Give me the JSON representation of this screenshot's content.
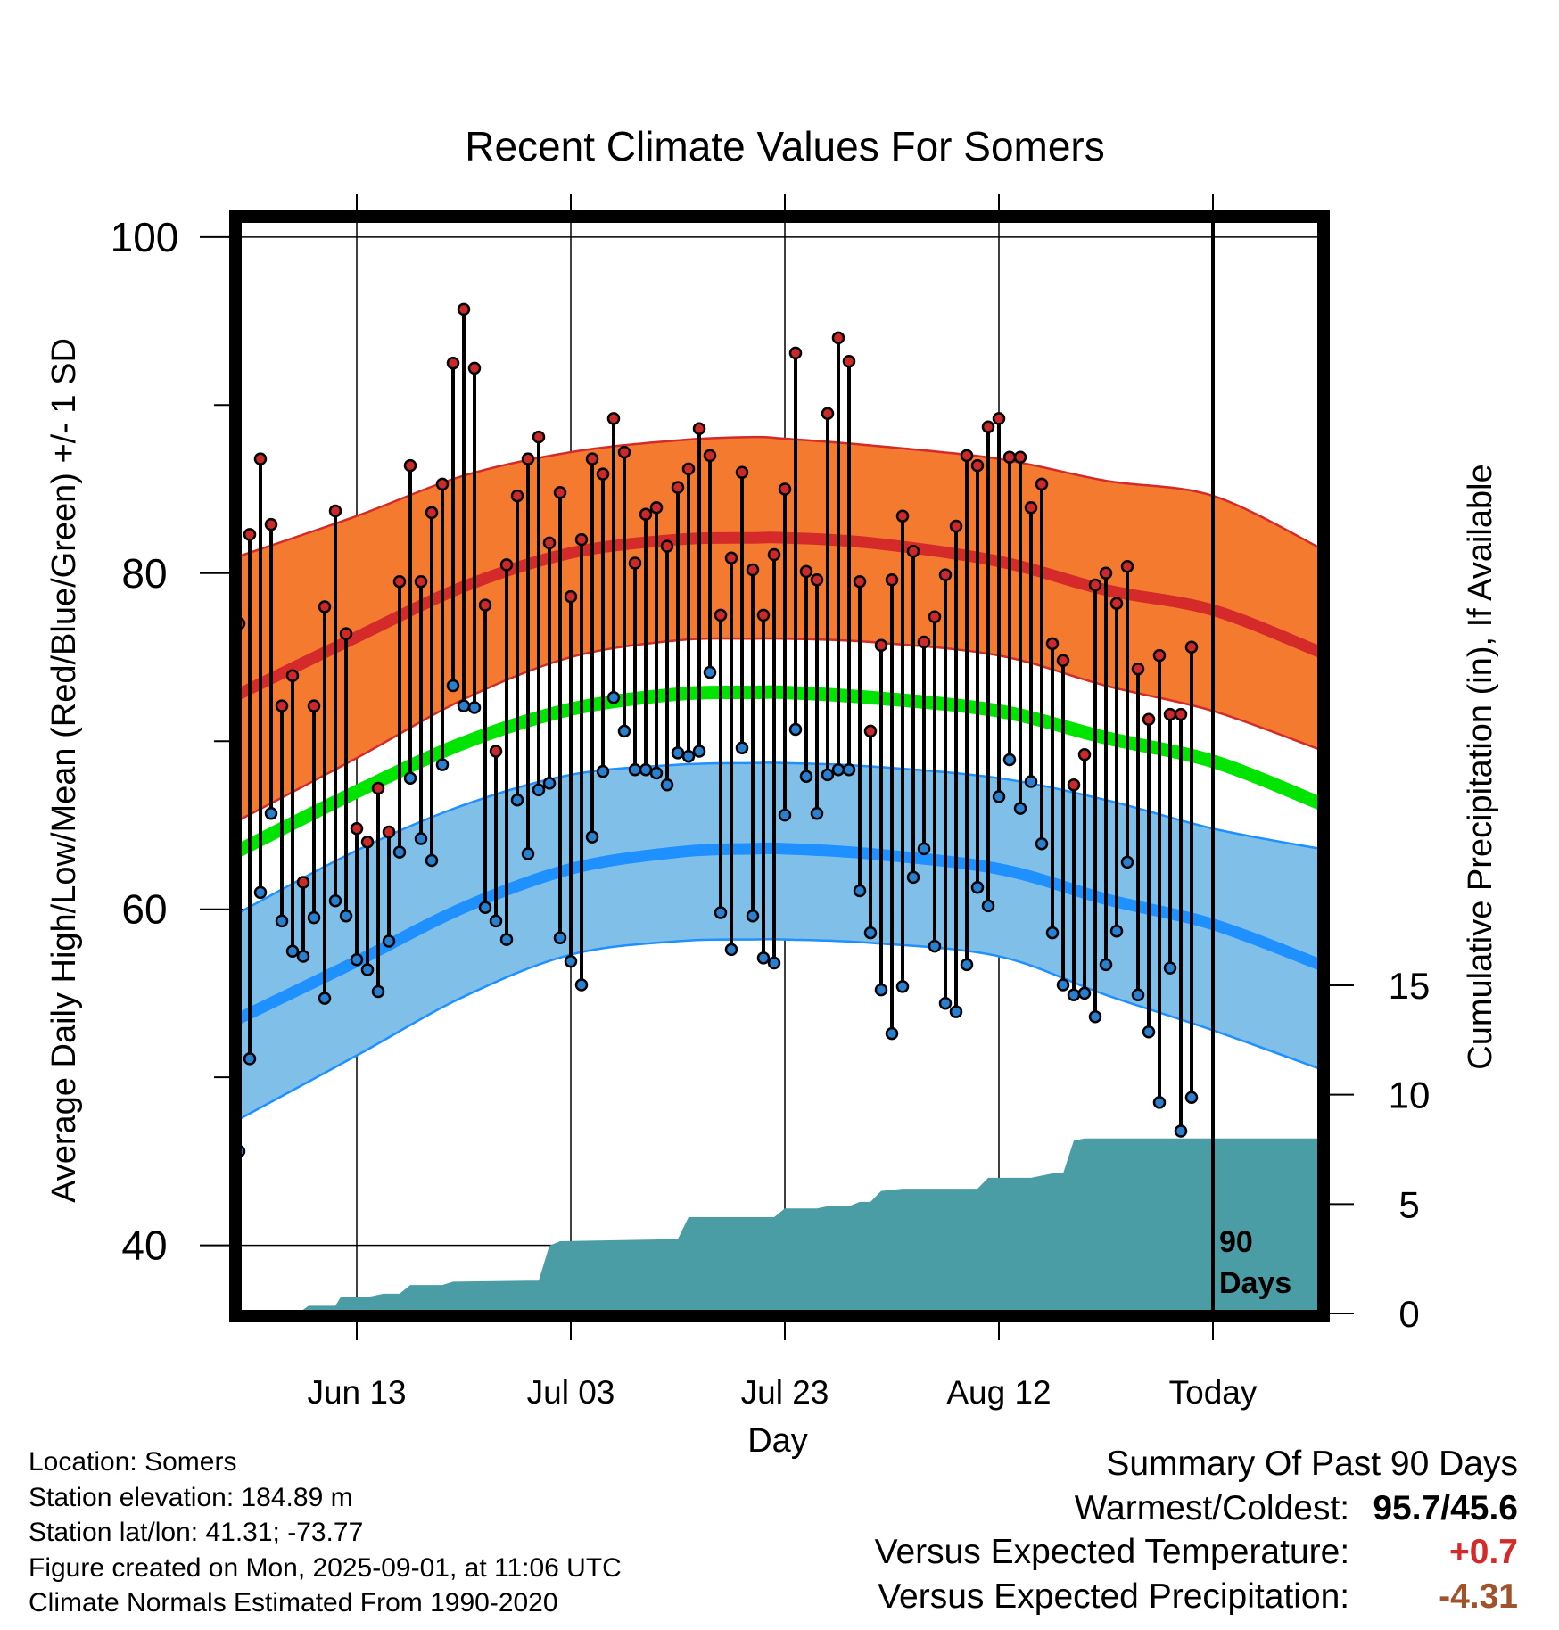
{
  "chart_data": {
    "type": "line",
    "title": "Recent Climate Values For Somers",
    "xlabel": "Day",
    "ylabel": "Average Daily High/Low/Mean (Red/Blue/Green) +/- 1 SD",
    "y2label": "Cumulative Precipitation (in), If Available",
    "ylim": [
      36,
      101
    ],
    "y2lim": [
      0,
      20
    ],
    "xlim_day": [
      1,
      102
    ],
    "x_ticks": [
      {
        "label": "Jun 13",
        "day": 12
      },
      {
        "label": "Jul 03",
        "day": 32
      },
      {
        "label": "Jul 23",
        "day": 52
      },
      {
        "label": "Aug 12",
        "day": 72
      },
      {
        "label": "Today",
        "day": 92
      }
    ],
    "y_ticks": [
      40,
      60,
      80,
      100
    ],
    "y2_ticks": [
      0,
      5,
      10,
      15
    ],
    "today_marker_label": [
      "90",
      "Days"
    ],
    "normals": {
      "days": [
        1,
        12,
        22,
        32,
        42,
        49,
        52,
        60,
        72,
        82,
        92,
        102
      ],
      "high_mean": [
        72.8,
        76.2,
        79.2,
        81.2,
        82.0,
        82.1,
        82.1,
        81.8,
        80.7,
        79.0,
        77.8,
        75.3
      ],
      "high_upper": [
        81.0,
        83.4,
        85.8,
        87.2,
        87.9,
        88.1,
        88.0,
        87.6,
        86.8,
        85.5,
        84.6,
        81.5
      ],
      "high_lower": [
        65.3,
        69.0,
        72.5,
        75.0,
        76.0,
        76.1,
        76.1,
        75.9,
        75.1,
        73.3,
        71.8,
        69.5
      ],
      "mean_normal": [
        63.5,
        67.0,
        69.9,
        71.9,
        72.8,
        72.9,
        72.9,
        72.6,
        71.8,
        70.2,
        68.8,
        66.3
      ],
      "low_mean": [
        53.5,
        56.9,
        60.1,
        62.4,
        63.4,
        63.6,
        63.6,
        63.3,
        62.4,
        60.6,
        59.1,
        56.7
      ],
      "low_upper": [
        59.8,
        63.5,
        66.2,
        68.0,
        68.6,
        68.7,
        68.7,
        68.5,
        67.8,
        66.5,
        64.8,
        63.6
      ],
      "low_lower": [
        47.5,
        51.3,
        54.8,
        57.3,
        58.1,
        58.2,
        58.2,
        58.0,
        57.2,
        54.9,
        52.8,
        50.5
      ]
    },
    "daily_high": [
      77.0,
      82.3,
      86.8,
      82.9,
      72.1,
      73.9,
      61.6,
      72.1,
      78.0,
      83.7,
      76.4,
      64.8,
      64.0,
      67.2,
      64.6,
      79.5,
      86.4,
      79.5,
      83.6,
      85.3,
      92.5,
      95.7,
      92.2,
      78.1,
      69.4,
      80.5,
      84.6,
      86.8,
      88.1,
      81.8,
      84.8,
      78.6,
      82.0,
      86.8,
      85.9,
      89.2,
      87.2,
      80.6,
      83.5,
      83.9,
      81.6,
      85.1,
      86.2,
      88.6,
      87.0,
      77.5,
      80.9,
      86.0,
      80.2,
      77.5,
      81.1,
      85.0,
      93.1,
      80.1,
      79.6,
      89.5,
      94.0,
      92.6,
      79.5,
      70.6,
      75.7,
      79.6,
      83.4,
      81.3,
      75.9,
      77.4,
      79.9,
      82.8,
      87.0,
      86.4,
      88.7,
      89.2,
      86.9,
      86.9,
      83.9,
      85.3,
      75.8,
      74.8,
      67.4,
      69.2,
      79.3,
      80.0,
      78.2,
      80.4,
      74.3,
      71.3,
      75.1,
      71.6,
      71.6,
      75.6
    ],
    "daily_low": [
      45.6,
      51.1,
      61.0,
      65.7,
      59.3,
      57.5,
      57.2,
      59.5,
      54.7,
      60.5,
      59.6,
      57.0,
      56.4,
      55.1,
      58.1,
      63.4,
      67.8,
      64.2,
      62.9,
      68.6,
      73.3,
      72.1,
      72.0,
      60.1,
      59.3,
      58.2,
      66.5,
      63.3,
      67.1,
      67.5,
      58.3,
      56.9,
      55.5,
      64.3,
      68.2,
      72.6,
      70.6,
      68.3,
      68.3,
      68.1,
      67.4,
      69.3,
      69.1,
      69.4,
      74.1,
      59.8,
      57.6,
      69.6,
      59.6,
      57.1,
      56.8,
      65.6,
      70.7,
      67.9,
      65.7,
      68.0,
      68.3,
      68.3,
      61.1,
      58.6,
      55.2,
      52.6,
      55.4,
      61.9,
      63.6,
      57.8,
      54.4,
      53.9,
      56.7,
      61.3,
      60.2,
      66.7,
      68.9,
      66.0,
      67.6,
      63.9,
      58.6,
      55.5,
      54.9,
      55.0,
      53.6,
      56.7,
      58.7,
      62.8,
      54.9,
      52.7,
      48.5,
      56.5,
      46.8,
      48.8
    ],
    "cumulative_precip": {
      "days": [
        1,
        6.5,
        7.5,
        10,
        10.5,
        13,
        14.5,
        16,
        17,
        20,
        21,
        28,
        29,
        30,
        31,
        42,
        43,
        51,
        52,
        53,
        55,
        56,
        58,
        59,
        60,
        61,
        63,
        70,
        71,
        74,
        75,
        77,
        78,
        79,
        80,
        81,
        102
      ],
      "values": [
        0,
        0,
        0.35,
        0.35,
        0.75,
        0.75,
        0.9,
        0.9,
        1.3,
        1.3,
        1.45,
        1.5,
        1.5,
        3.1,
        3.3,
        3.4,
        4.4,
        4.4,
        4.8,
        4.8,
        4.8,
        4.9,
        4.9,
        5.1,
        5.1,
        5.6,
        5.7,
        5.7,
        6.2,
        6.2,
        6.2,
        6.4,
        6.4,
        7.9,
        8.0,
        8.0,
        8.0
      ]
    },
    "colors": {
      "high_band": "#f47a30",
      "high_edge": "#d42a2a",
      "high_line": "#d42a2a",
      "mean_line": "#00e400",
      "low_band": "#80c0e8",
      "low_edge": "#1e90ff",
      "low_line": "#1e90ff",
      "precip_fill": "#4a9ca5",
      "high_dot": "#cc2a2a",
      "low_dot": "#2a80d0"
    }
  },
  "info": {
    "location": "Location: Somers",
    "elevation": "Station elevation: 184.89 m",
    "latlon": "Station lat/lon: 41.31; -73.77",
    "created": "Figure created on Mon, 2025-09-01, at 11:06 UTC",
    "normals": "Climate Normals Estimated From 1990-2020"
  },
  "summary": {
    "heading": "Summary Of Past 90 Days",
    "warm_cold_label": "Warmest/Coldest:",
    "warm_cold_value": "95.7/45.6",
    "temp_label": "Versus Expected Temperature:",
    "temp_value": "+0.7",
    "temp_color": "#d42a2a",
    "precip_label": "Versus Expected Precipitation:",
    "precip_value": "-4.31",
    "precip_color": "#a0522d"
  }
}
